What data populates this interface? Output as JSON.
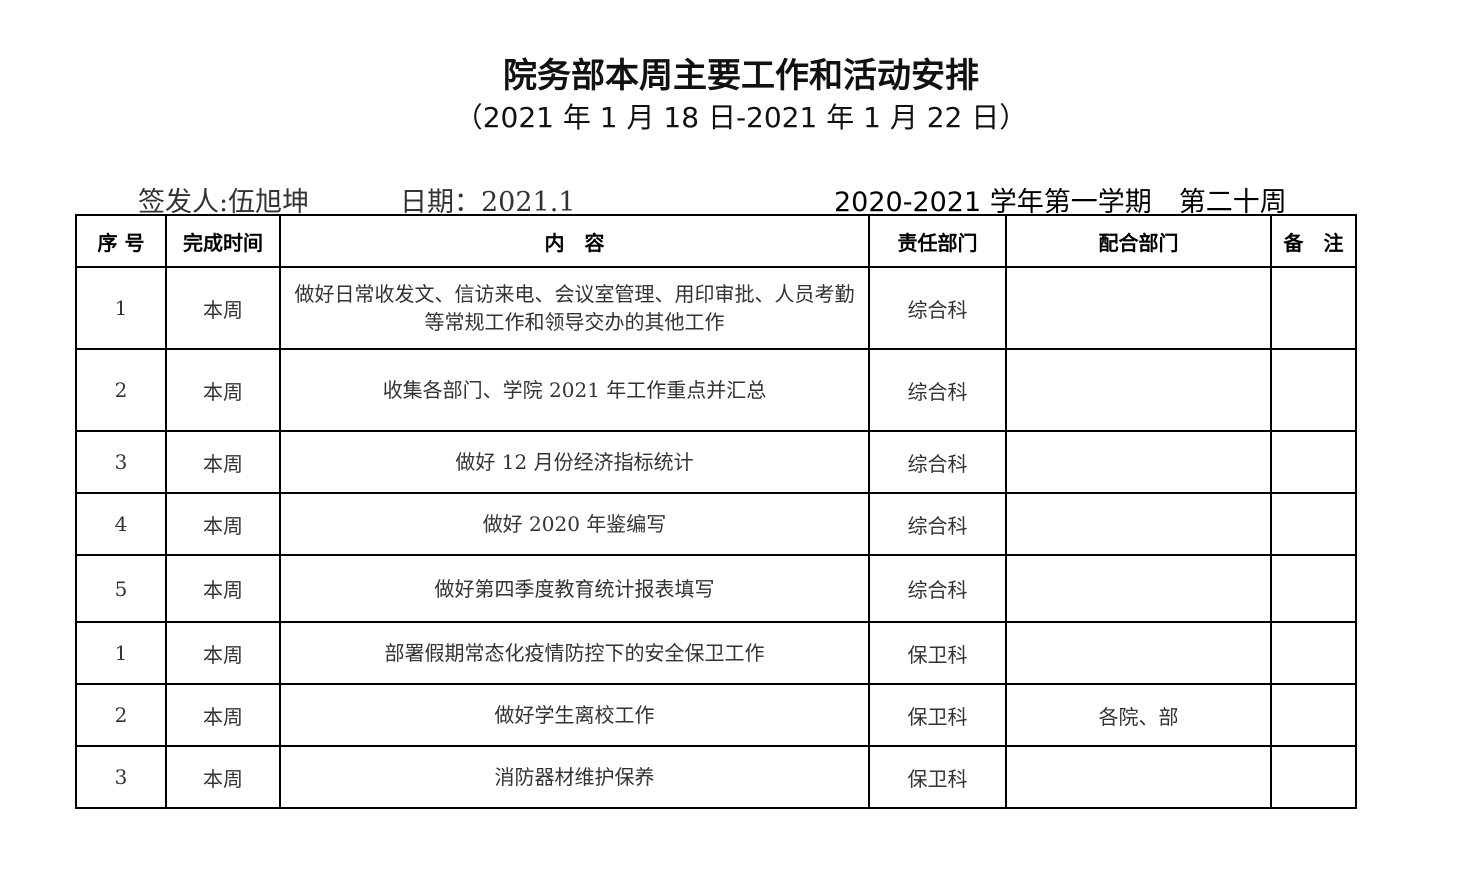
{
  "title": "院务部本周主要工作和活动安排",
  "subtitle": "（2021 年 1 月 18 日-2021 年 1 月 22 日）",
  "signer": "签发人:伍旭坤",
  "date": "日期：2021.1",
  "term": "2020-2021 学年第一学期　第二十周",
  "headers": [
    "序 号",
    "完成时间",
    "内　容",
    "责任部门",
    "配合部门",
    "备　注"
  ],
  "rows": [
    {
      "no": "1",
      "time": "本周",
      "content": "做好日常收发文、信访来电、会议室管理、用印审批、人员考勤等常规工作和领导交办的其他工作",
      "dept": "综合科",
      "coop": "",
      "note": ""
    },
    {
      "no": "2",
      "time": "本周",
      "content": "收集各部门、学院 2021 年工作重点并汇总",
      "dept": "综合科",
      "coop": "",
      "note": ""
    },
    {
      "no": "3",
      "time": "本周",
      "content": "做好 12 月份经济指标统计",
      "dept": "综合科",
      "coop": "",
      "note": ""
    },
    {
      "no": "4",
      "time": "本周",
      "content": "做好 2020 年鉴编写",
      "dept": "综合科",
      "coop": "",
      "note": ""
    },
    {
      "no": "5",
      "time": "本周",
      "content": "做好第四季度教育统计报表填写",
      "dept": "综合科",
      "coop": "",
      "note": ""
    },
    {
      "no": "1",
      "time": "本周",
      "content": "部署假期常态化疫情防控下的安全保卫工作",
      "dept": "保卫科",
      "coop": "",
      "note": ""
    },
    {
      "no": "2",
      "time": "本周",
      "content": "做好学生离校工作",
      "dept": "保卫科",
      "coop": "各院、部",
      "note": ""
    },
    {
      "no": "3",
      "time": "本周",
      "content": "消防器材维护保养",
      "dept": "保卫科",
      "coop": "",
      "note": ""
    }
  ]
}
